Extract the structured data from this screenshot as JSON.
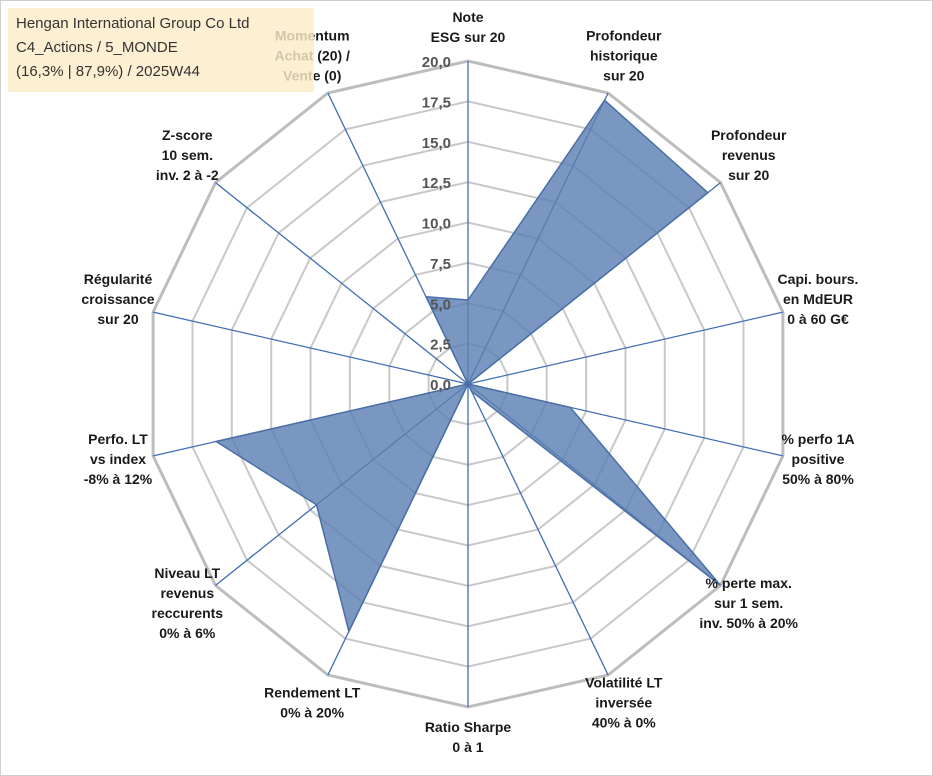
{
  "header": {
    "line1": "Hengan International Group Co Ltd",
    "line2": "C4_Actions / 5_MONDE",
    "line3": "(16,3% | 87,9%) / 2025W44"
  },
  "colors": {
    "fill": "#5b80b2",
    "stroke": "#4a6fa8",
    "spoke": "#3f6eb5",
    "ring": "#c8c8c8",
    "outer_ring": "#bdbdbd"
  },
  "chart_data": {
    "type": "radar",
    "title": "",
    "rmax": 20,
    "tick_labels": [
      "0,0",
      "2,5",
      "5,0",
      "7,5",
      "10,0",
      "12,5",
      "15,0",
      "17,5",
      "20,0"
    ],
    "axes": [
      {
        "label": [
          "Note",
          "ESG sur 20"
        ],
        "value": 5.2
      },
      {
        "label": [
          "Profondeur",
          "historique",
          "sur 20"
        ],
        "value": 19.5
      },
      {
        "label": [
          "Profondeur",
          "revenus",
          "sur 20"
        ],
        "value": 19.0
      },
      {
        "label": [
          "Capi. bours.",
          "en MdEUR",
          "0 à 60 G€"
        ],
        "value": 0.0
      },
      {
        "label": [
          "% perfo 1A",
          "positive",
          "50% à 80%"
        ],
        "value": 6.5
      },
      {
        "label": [
          "% perte max.",
          "sur 1 sem.",
          "inv. 50% à 20%"
        ],
        "value": 20.0
      },
      {
        "label": [
          "Volatilité LT",
          "inversée",
          "40% à 0%"
        ],
        "value": 0.5
      },
      {
        "label": [
          "Ratio Sharpe",
          "0 à 1"
        ],
        "value": 0.0
      },
      {
        "label": [
          "Rendement LT",
          "0% à 20%"
        ],
        "value": 17.0
      },
      {
        "label": [
          "Niveau LT",
          "revenus",
          "reccurents",
          "0% à 6%"
        ],
        "value": 12.0
      },
      {
        "label": [
          "Perfo. LT",
          "vs index",
          "-8% à 12%"
        ],
        "value": 16.0
      },
      {
        "label": [
          "Régularité",
          "croissance",
          "sur 20"
        ],
        "value": 0.0
      },
      {
        "label": [
          "Z-score",
          "10 sem.",
          "inv. 2 à -2"
        ],
        "value": 0.0
      },
      {
        "label": [
          "Momentum",
          "Achat (20) /",
          "Vente (0)"
        ],
        "value": 6.0
      }
    ]
  }
}
